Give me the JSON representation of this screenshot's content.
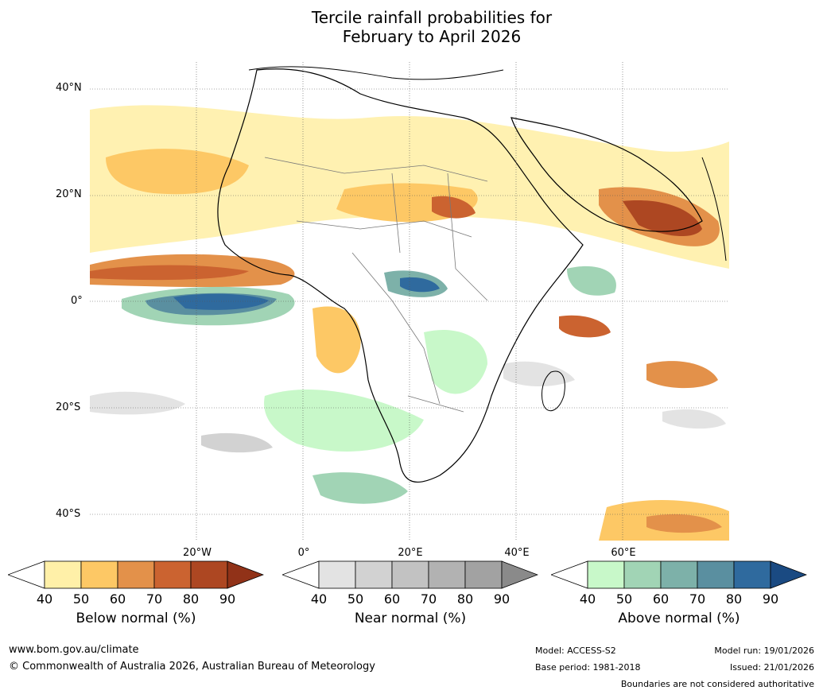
{
  "title": {
    "line1": "Tercile rainfall probabilities for",
    "line2": "February to April 2026"
  },
  "map": {
    "lat_labels": [
      "40°N",
      "20°N",
      "0°",
      "20°S",
      "40°S"
    ],
    "lon_labels": [
      "20°W",
      "0°",
      "20°E",
      "40°E",
      "60°E"
    ]
  },
  "legend": {
    "below": {
      "title": "Below normal (%)",
      "ticks": [
        "40",
        "50",
        "60",
        "70",
        "80",
        "90"
      ],
      "colors": [
        "#fff0a8",
        "#fdc865",
        "#e3914a",
        "#cb6330",
        "#ad4722",
        "#913218"
      ]
    },
    "near": {
      "title": "Near normal (%)",
      "ticks": [
        "40",
        "50",
        "60",
        "70",
        "80",
        "90"
      ],
      "colors": [
        "#e3e3e3",
        "#d2d2d2",
        "#c2c2c2",
        "#b2b2b2",
        "#a2a2a2",
        "#8a8a8a"
      ]
    },
    "above": {
      "title": "Above normal (%)",
      "ticks": [
        "40",
        "50",
        "60",
        "70",
        "80",
        "90"
      ],
      "colors": [
        "#c8f8c9",
        "#a1d4b5",
        "#7db1a9",
        "#5a8fa0",
        "#2f6a9e",
        "#1a4a82"
      ]
    }
  },
  "footer": {
    "website": "www.bom.gov.au/climate",
    "copyright": "© Commonwealth of Australia 2026, Australian Bureau of Meteorology",
    "model": "Model: ACCESS-S2",
    "base_period": "Base period: 1981-2018",
    "model_run": "Model run: 19/01/2026",
    "issued": "Issued: 21/01/2026",
    "disclaimer": "Boundaries are not considered authoritative"
  }
}
